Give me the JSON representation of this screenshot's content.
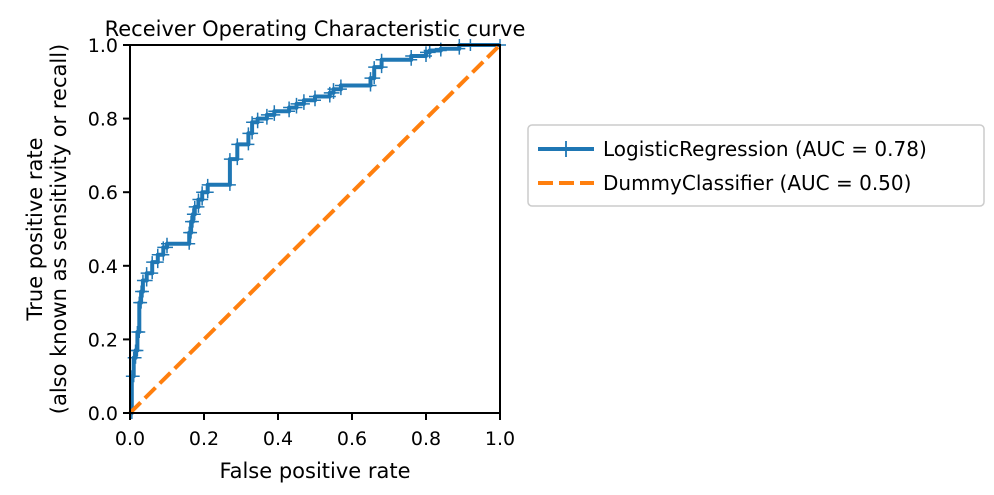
{
  "chart_data": {
    "type": "line",
    "title": "Receiver Operating Characteristic curve",
    "xlabel": "False positive rate",
    "ylabel_lines": [
      "True positive rate",
      "(also known as sensitivity or recall)"
    ],
    "xlim": [
      0.0,
      1.0
    ],
    "ylim": [
      0.0,
      1.0
    ],
    "xticks": [
      "0.0",
      "0.2",
      "0.4",
      "0.6",
      "0.8",
      "1.0"
    ],
    "yticks": [
      "0.0",
      "0.2",
      "0.4",
      "0.6",
      "0.8",
      "1.0"
    ],
    "grid": false,
    "legend_position": "right, outside plot",
    "series": [
      {
        "name": "LogisticRegression (AUC = 0.78)",
        "color": "#1f77b4",
        "style": "solid",
        "marker": "+",
        "x": [
          0.0,
          0.005,
          0.005,
          0.01,
          0.01,
          0.015,
          0.015,
          0.02,
          0.02,
          0.025,
          0.025,
          0.03,
          0.03,
          0.035,
          0.035,
          0.045,
          0.045,
          0.06,
          0.06,
          0.075,
          0.075,
          0.09,
          0.09,
          0.1,
          0.1,
          0.16,
          0.16,
          0.165,
          0.165,
          0.17,
          0.17,
          0.175,
          0.175,
          0.185,
          0.185,
          0.195,
          0.195,
          0.21,
          0.21,
          0.27,
          0.27,
          0.29,
          0.29,
          0.32,
          0.32,
          0.33,
          0.33,
          0.345,
          0.345,
          0.37,
          0.37,
          0.39,
          0.39,
          0.43,
          0.43,
          0.45,
          0.45,
          0.47,
          0.47,
          0.5,
          0.5,
          0.54,
          0.54,
          0.55,
          0.55,
          0.57,
          0.57,
          0.65,
          0.65,
          0.66,
          0.66,
          0.68,
          0.68,
          0.76,
          0.76,
          0.8,
          0.8,
          0.81,
          0.81,
          0.84,
          0.84,
          0.89,
          0.89,
          0.92,
          1.0
        ],
        "y": [
          0.0,
          0.0,
          0.1,
          0.1,
          0.15,
          0.15,
          0.17,
          0.17,
          0.22,
          0.22,
          0.3,
          0.3,
          0.33,
          0.33,
          0.36,
          0.36,
          0.38,
          0.38,
          0.41,
          0.41,
          0.43,
          0.43,
          0.45,
          0.45,
          0.46,
          0.46,
          0.49,
          0.49,
          0.52,
          0.52,
          0.54,
          0.54,
          0.56,
          0.56,
          0.58,
          0.58,
          0.6,
          0.6,
          0.62,
          0.62,
          0.69,
          0.69,
          0.73,
          0.73,
          0.76,
          0.76,
          0.79,
          0.79,
          0.8,
          0.8,
          0.81,
          0.81,
          0.82,
          0.82,
          0.83,
          0.83,
          0.84,
          0.84,
          0.85,
          0.85,
          0.86,
          0.86,
          0.87,
          0.87,
          0.88,
          0.88,
          0.89,
          0.89,
          0.91,
          0.91,
          0.94,
          0.94,
          0.96,
          0.96,
          0.97,
          0.97,
          0.98,
          0.98,
          0.985,
          0.985,
          0.99,
          0.99,
          1.0,
          1.0,
          1.0
        ]
      },
      {
        "name": "DummyClassifier (AUC = 0.50)",
        "color": "#ff7f0e",
        "style": "dashed",
        "marker": "none",
        "x": [
          0.0,
          1.0
        ],
        "y": [
          0.0,
          1.0
        ]
      }
    ]
  }
}
